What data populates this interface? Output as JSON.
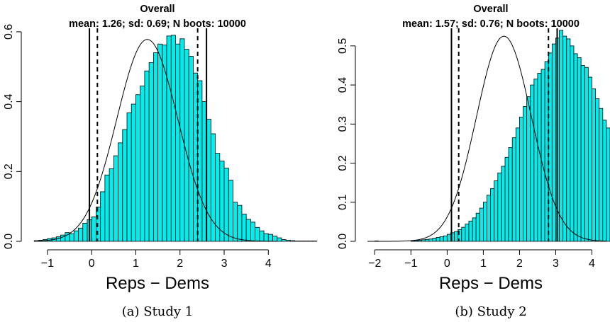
{
  "chart_data": [
    {
      "type": "histogram",
      "title": "Overall",
      "subtitle": "mean: 1.26; sd: 0.69; N boots: 10000",
      "xlabel": "Reps − Dems",
      "ylabel": "",
      "caption": "(a) Study 1",
      "fill_color": "#00eeee",
      "edge_color": "#000000",
      "xlim": [
        -1.4,
        4.3
      ],
      "ylim": [
        0,
        0.61
      ],
      "x_ticks": [
        -1,
        0,
        1,
        2,
        3,
        4
      ],
      "y_ticks": [
        0.0,
        0.2,
        0.4,
        0.6
      ],
      "bin_width": 0.1,
      "bins_start": -1.3,
      "density": [
        0.002,
        0.003,
        0.005,
        0.008,
        0.01,
        0.013,
        0.018,
        0.025,
        0.022,
        0.03,
        0.038,
        0.052,
        0.062,
        0.07,
        0.098,
        0.142,
        0.19,
        0.208,
        0.245,
        0.282,
        0.32,
        0.368,
        0.393,
        0.42,
        0.445,
        0.488,
        0.512,
        0.54,
        0.565,
        0.562,
        0.588,
        0.59,
        0.565,
        0.58,
        0.55,
        0.53,
        0.482,
        0.46,
        0.4,
        0.35,
        0.308,
        0.252,
        0.23,
        0.21,
        0.175,
        0.112,
        0.103,
        0.078,
        0.063,
        0.055,
        0.04,
        0.03,
        0.022,
        0.02,
        0.015,
        0.01,
        0.005,
        0.003,
        0.002,
        0.001,
        0.001,
        0.001,
        0.001,
        0.001
      ],
      "normal_fit": {
        "mean": 1.26,
        "sd": 0.69
      },
      "solid_vlines": [
        -0.05,
        2.6
      ],
      "dashed_vlines": [
        0.13,
        2.4
      ]
    },
    {
      "type": "histogram",
      "title": "Overall",
      "subtitle": "mean: 1.57; sd: 0.76; N boots: 10000",
      "xlabel": "Reps − Dems",
      "ylabel": "",
      "caption": "(b) Study 2",
      "fill_color": "#00eeee",
      "edge_color": "#000000",
      "xlim": [
        -2.3,
        4.5
      ],
      "ylim": [
        0,
        0.545
      ],
      "x_ticks": [
        -2,
        -1,
        0,
        1,
        2,
        3,
        4
      ],
      "y_ticks": [
        0.0,
        0.1,
        0.2,
        0.3,
        0.4,
        0.5
      ],
      "bin_width": 0.1,
      "bins_start": -2.0,
      "density": [
        0.001,
        0.0,
        0.0,
        0.0,
        0.0,
        0.0,
        0.0,
        0.0,
        0.0,
        0.0,
        0.001,
        0.002,
        0.003,
        0.004,
        0.005,
        0.006,
        0.008,
        0.01,
        0.012,
        0.014,
        0.018,
        0.022,
        0.025,
        0.03,
        0.036,
        0.044,
        0.052,
        0.06,
        0.072,
        0.085,
        0.1,
        0.118,
        0.135,
        0.155,
        0.175,
        0.192,
        0.215,
        0.24,
        0.265,
        0.29,
        0.318,
        0.345,
        0.37,
        0.4,
        0.415,
        0.43,
        0.44,
        0.46,
        0.482,
        0.505,
        0.52,
        0.54,
        0.525,
        0.518,
        0.5,
        0.48,
        0.47,
        0.45,
        0.445,
        0.42,
        0.39,
        0.365,
        0.34,
        0.31,
        0.29,
        0.26,
        0.235,
        0.2,
        0.18,
        0.16,
        0.135,
        0.12,
        0.1,
        0.085,
        0.06,
        0.055,
        0.05,
        0.045,
        0.04,
        0.035,
        0.03,
        0.025,
        0.02,
        0.015,
        0.01,
        0.008,
        0.005,
        0.004,
        0.003,
        0.002,
        0.002,
        0.001,
        0.001,
        0.001,
        0.001,
        0.001,
        0.001,
        0.001,
        0.001,
        0.001,
        0.001
      ],
      "normal_fit": {
        "mean": 1.57,
        "sd": 0.76
      },
      "solid_vlines": [
        0.12,
        3.04
      ],
      "dashed_vlines": [
        0.32,
        2.8
      ]
    }
  ]
}
